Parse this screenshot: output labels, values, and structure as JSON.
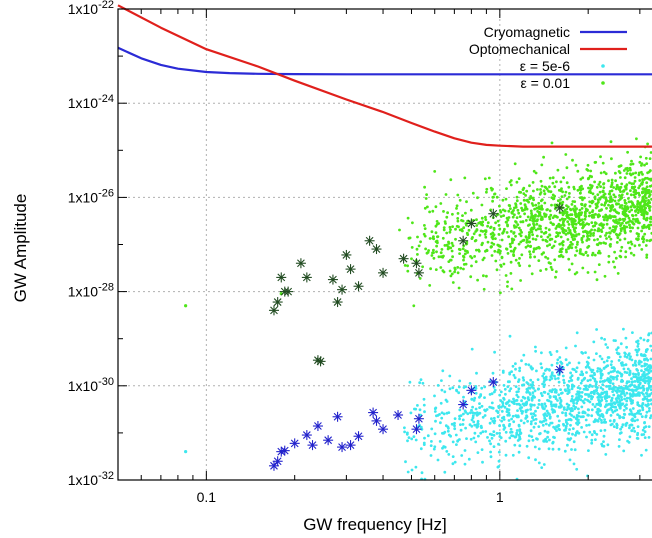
{
  "chart_data": {
    "type": "scatter",
    "xlabel": "GW frequency [Hz]",
    "ylabel": "GW Amplitude",
    "xscale": "log",
    "yscale": "log",
    "xlim": [
      0.05,
      3.3
    ],
    "ylim": [
      1e-32,
      1e-22
    ],
    "grid": true,
    "legend_position": "top-right",
    "x_ticks": [
      {
        "value": 0.1,
        "label": "0.1"
      },
      {
        "value": 1,
        "label": "1"
      }
    ],
    "y_ticks": [
      {
        "value": 1e-22,
        "base": "1x10",
        "exp": "-22"
      },
      {
        "value": 1e-24,
        "base": "1x10",
        "exp": "-24"
      },
      {
        "value": 1e-26,
        "base": "1x10",
        "exp": "-26"
      },
      {
        "value": 1e-28,
        "base": "1x10",
        "exp": "-28"
      },
      {
        "value": 1e-30,
        "base": "1x10",
        "exp": "-30"
      },
      {
        "value": 1e-32,
        "base": "1x10",
        "exp": "-32"
      }
    ],
    "lines": [
      {
        "name": "Cryomagnetic",
        "color": "#2b2bd6",
        "x": [
          0.05,
          0.06,
          0.07,
          0.08,
          0.1,
          0.12,
          0.15,
          0.2,
          0.3,
          0.5,
          1,
          2,
          3.3
        ],
        "y": [
          1.5e-23,
          9e-24,
          6.5e-24,
          5.4e-24,
          4.6e-24,
          4.35e-24,
          4.2e-24,
          4.15e-24,
          4.1e-24,
          4.1e-24,
          4.1e-24,
          4.1e-24,
          4.1e-24
        ]
      },
      {
        "name": "Optomechanical",
        "color": "#e0201c",
        "x": [
          0.05,
          0.07,
          0.1,
          0.15,
          0.2,
          0.3,
          0.4,
          0.5,
          0.6,
          0.7,
          0.8,
          0.9,
          1,
          1.2,
          1.5,
          2,
          3.3
        ],
        "y": [
          1.2e-22,
          4e-23,
          1.4e-23,
          6e-24,
          3e-24,
          1.2e-24,
          6.5e-25,
          3.8e-25,
          2.5e-25,
          1.8e-25,
          1.45e-25,
          1.3e-25,
          1.25e-25,
          1.2e-25,
          1.2e-25,
          1.2e-25,
          1.2e-25
        ]
      }
    ],
    "scatter_series": [
      {
        "name": "ε = 5e-6",
        "color": "#3de7ee",
        "center_log_amp_at_1hz": -30.6,
        "slope": 1.25,
        "spread": 0.5,
        "isolated_points": [
          [
            0.085,
            4e-32
          ]
        ],
        "highlighted_color": "#2222cc",
        "highlighted_points": [
          [
            0.17,
            2e-32
          ],
          [
            0.175,
            2.5e-32
          ],
          [
            0.18,
            4e-32
          ],
          [
            0.185,
            4.2e-32
          ],
          [
            0.2,
            6e-32
          ],
          [
            0.22,
            9e-32
          ],
          [
            0.23,
            5.5e-32
          ],
          [
            0.24,
            1.4e-31
          ],
          [
            0.26,
            7e-32
          ],
          [
            0.28,
            2.2e-31
          ],
          [
            0.29,
            5e-32
          ],
          [
            0.31,
            5.5e-32
          ],
          [
            0.33,
            8.5e-32
          ],
          [
            0.37,
            2.7e-31
          ],
          [
            0.4,
            1.2e-31
          ],
          [
            0.38,
            1.8e-31
          ],
          [
            0.45,
            2.4e-31
          ],
          [
            0.52,
            1.2e-31
          ],
          [
            0.53,
            2e-31
          ],
          [
            0.75,
            4e-31
          ],
          [
            0.8,
            8e-31
          ],
          [
            0.95,
            1.2e-30
          ],
          [
            1.6,
            2.2e-30
          ]
        ]
      },
      {
        "name": "ε = 0.01",
        "color": "#4fe619",
        "center_log_amp_at_1hz": -26.7,
        "slope": 1.05,
        "spread": 0.5,
        "isolated_points": [
          [
            0.085,
            5e-29
          ],
          [
            0.18,
            9e-29
          ]
        ],
        "highlighted_color": "#224c22",
        "highlighted_points": [
          [
            0.17,
            4e-29
          ],
          [
            0.175,
            6e-29
          ],
          [
            0.18,
            2e-28
          ],
          [
            0.185,
            1e-28
          ],
          [
            0.19,
            1e-28
          ],
          [
            0.21,
            4e-28
          ],
          [
            0.22,
            2e-28
          ],
          [
            0.24,
            3.5e-30
          ],
          [
            0.245,
            3.3e-30
          ],
          [
            0.27,
            1.8e-28
          ],
          [
            0.28,
            6e-29
          ],
          [
            0.29,
            1.1e-28
          ],
          [
            0.3,
            6e-28
          ],
          [
            0.31,
            3e-28
          ],
          [
            0.33,
            1.3e-28
          ],
          [
            0.36,
            1.2e-27
          ],
          [
            0.38,
            8e-28
          ],
          [
            0.4,
            2.5e-28
          ],
          [
            0.47,
            5e-28
          ],
          [
            0.52,
            4e-28
          ],
          [
            0.53,
            2.5e-28
          ],
          [
            0.75,
            1.2e-27
          ],
          [
            0.8,
            2.8e-27
          ],
          [
            0.95,
            4.5e-27
          ],
          [
            1.6,
            6e-27
          ]
        ]
      }
    ]
  }
}
